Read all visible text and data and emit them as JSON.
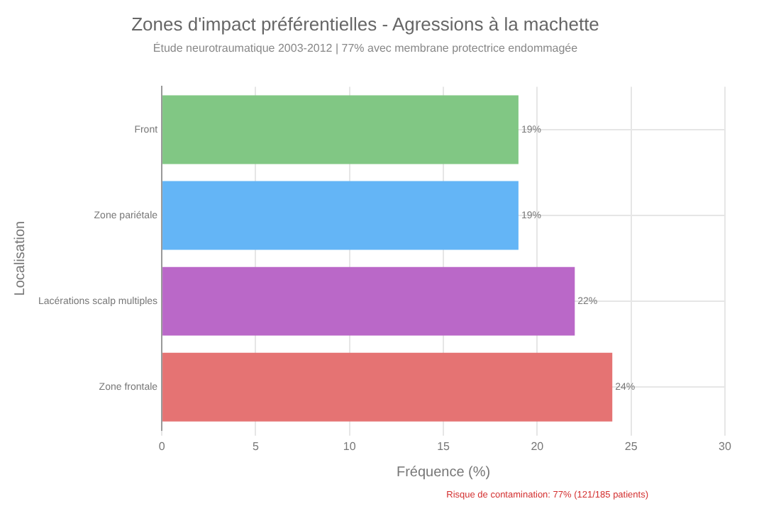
{
  "chart_data": {
    "type": "bar",
    "orientation": "horizontal",
    "title": "Zones d'impact préférentielles - Agressions à la machette",
    "subtitle": "Étude neurotraumatique 2003-2012 | 77% avec membrane protectrice endommagée",
    "xlabel": "Fréquence (%)",
    "ylabel": "Localisation",
    "categories": [
      "Front",
      "Zone pariétale",
      "Lacérations scalp multiples",
      "Zone frontale"
    ],
    "values": [
      19,
      19,
      22,
      24
    ],
    "colors": [
      "#81c784",
      "#64b5f6",
      "#ba68c8",
      "#e57373"
    ],
    "value_labels": [
      "19%",
      "19%",
      "22%",
      "24%"
    ],
    "xlim": [
      0,
      30
    ],
    "xticks": [
      0,
      5,
      10,
      15,
      20,
      25,
      30
    ],
    "grid": true,
    "legend": false,
    "annotations": [
      "Risque de contamination: 77% (121/185 patients)"
    ]
  }
}
